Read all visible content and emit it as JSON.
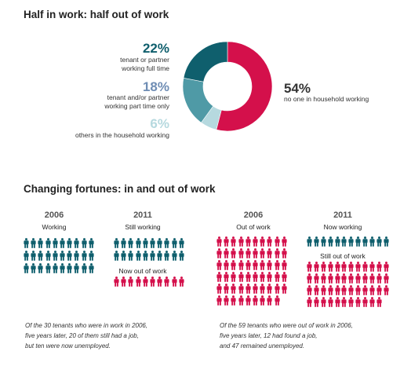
{
  "headline1": "Half in work: half out of work",
  "headline2": "Changing fortunes: in and out of work",
  "colors": {
    "teal": "#0f5f6d",
    "slate": "#4f9aa6",
    "light": "#b6d9df",
    "crimson": "#d4104b"
  },
  "chart_data": [
    {
      "type": "pie",
      "title": "Half in work: half out of work",
      "slices": [
        {
          "value": 54,
          "label": "54%",
          "desc": "no one in household working",
          "color": "#d4104b"
        },
        {
          "value": 6,
          "label": "6%",
          "desc": "others in the household working",
          "color": "#b6d9df"
        },
        {
          "value": 18,
          "label": "18%",
          "desc": "tenant and/or partner working part time only",
          "color": "#4f9aa6"
        },
        {
          "value": 22,
          "label": "22%",
          "desc": "tenant or partner working full time",
          "color": "#0f5f6d"
        }
      ]
    },
    {
      "type": "table",
      "title": "Changing fortunes: in and out of work",
      "groups": [
        {
          "year": "2006",
          "label": "Working",
          "count": 30,
          "color": "#0f5f6d"
        },
        {
          "year": "2011",
          "label": "Still working",
          "count": 20,
          "color": "#0f5f6d"
        },
        {
          "year": "2011",
          "label": "Now out of work",
          "count": 10,
          "color": "#d4104b"
        },
        {
          "year": "2006",
          "label": "Out of work",
          "count": 59,
          "color": "#d4104b"
        },
        {
          "year": "2011",
          "label": "Now working",
          "count": 12,
          "color": "#0f5f6d"
        },
        {
          "year": "2011",
          "label": "Still out of work",
          "count": 47,
          "color": "#d4104b"
        }
      ]
    }
  ],
  "donut_labels": {
    "full_time": {
      "pct": "22%",
      "line1": "tenant or partner",
      "line2": "working full time"
    },
    "part_time": {
      "pct": "18%",
      "line1": "tenant and/or partner",
      "line2": "working part time only"
    },
    "others": {
      "pct": "6%",
      "line1": "others in the household working"
    },
    "none": {
      "pct": "54%",
      "line1": "no one in household working"
    }
  },
  "left_panel": {
    "year_a": "2006",
    "label_a": "Working",
    "year_b": "2011",
    "label_b1": "Still working",
    "label_b2": "Now out of work",
    "caption1": "Of the 30 tenants who were in work in 2006,",
    "caption2": "five years later, 20 of them still had a job,",
    "caption3": "but ten were now unemployed."
  },
  "right_panel": {
    "year_a": "2006",
    "label_a": "Out of work",
    "year_b": "2011",
    "label_b1": "Now working",
    "label_b2": "Still out of work",
    "caption1": "Of the 59 tenants who were out of work in 2006,",
    "caption2": "five years later, 12 had found a job,",
    "caption3": "and 47 remained unemployed."
  }
}
